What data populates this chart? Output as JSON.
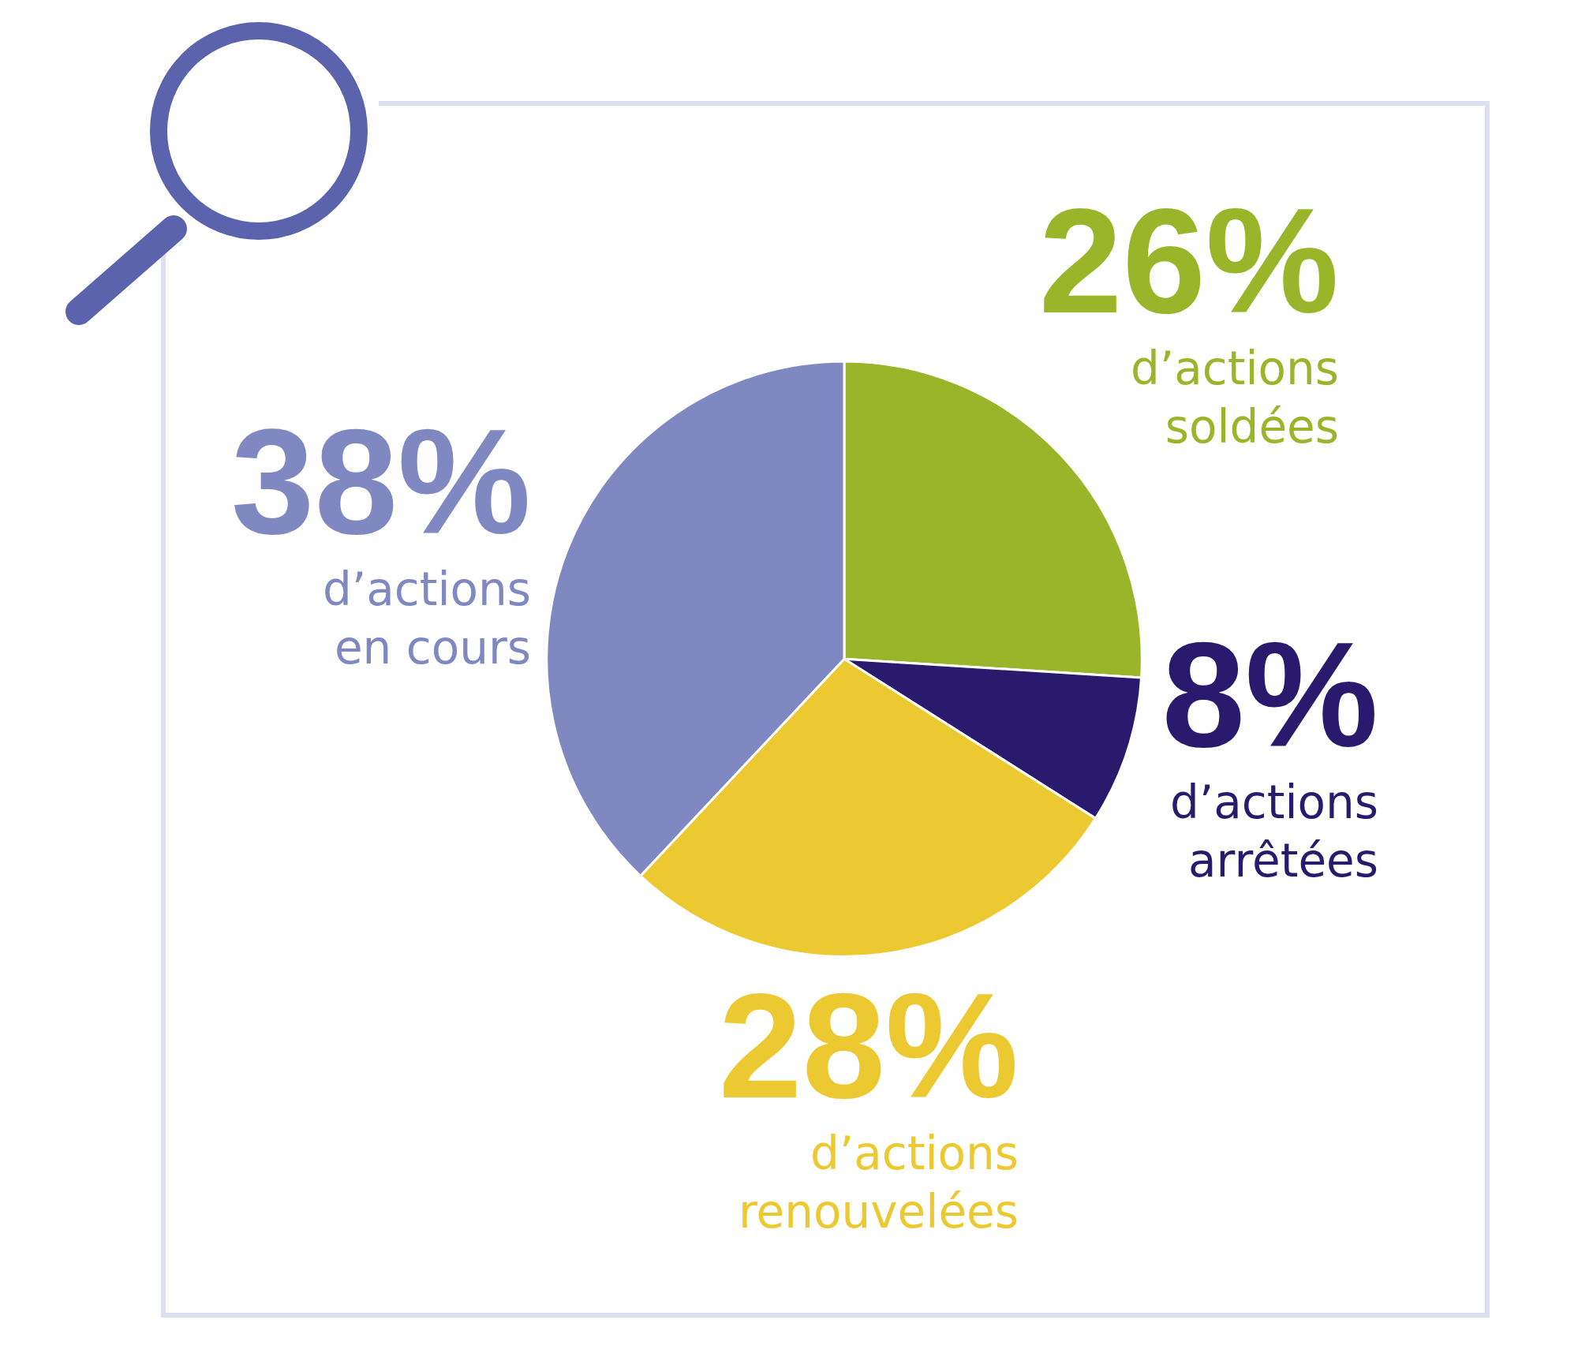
{
  "chart_data": {
    "type": "pie",
    "categories": [
      "d’actions soldées",
      "d’actions arrêtées",
      "d’actions renouvelées",
      "d’actions en cours"
    ],
    "values": [
      26,
      8,
      28,
      38
    ],
    "colors": [
      "#9bb52a",
      "#2a1a6e",
      "#ecc930",
      "#8088c2"
    ],
    "value_labels": [
      "26%",
      "8%",
      "28%",
      "38%"
    ]
  }
}
